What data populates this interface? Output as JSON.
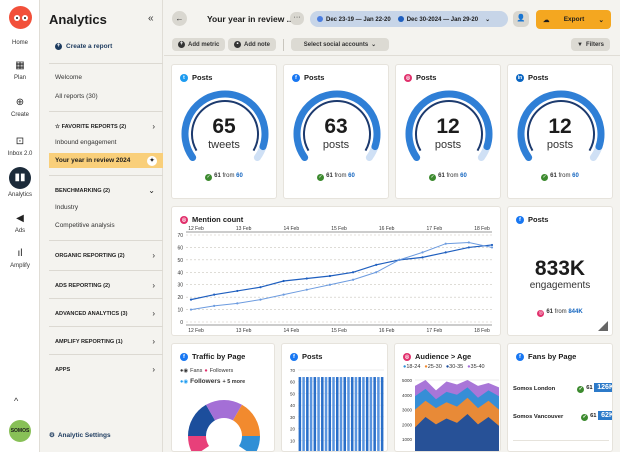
{
  "rail": {
    "items": [
      {
        "label": "Home"
      },
      {
        "label": "Plan"
      },
      {
        "label": "Create"
      },
      {
        "label": "Inbox 2.0"
      },
      {
        "label": "Analytics"
      },
      {
        "label": "Ads"
      },
      {
        "label": "Amplify"
      }
    ],
    "avatar": "SOMOS"
  },
  "panel": {
    "title": "Analytics",
    "create": "Create a report",
    "welcome": "Welcome",
    "all_reports": "All reports (30)",
    "favorite": "FAVORITE REPORTS (2)",
    "inbound": "Inbound engagement",
    "selected": "Your year in review 2024",
    "benchmarking": "BENCHMARKING (2)",
    "industry": "Industry",
    "competitive": "Competitive analysis",
    "organic": "ORGANIC REPORTING (2)",
    "ads": "ADS REPORTING (2)",
    "advanced": "ADVANCED ANALYTICS (3)",
    "amplify": "AMPLIFY REPORTING (1)",
    "apps": "APPS",
    "settings": "Analytic Settings"
  },
  "topbar": {
    "title": "Your year in review ..",
    "date1": "Dec 23-19 — Jan 22-20",
    "date2": "Dec 30-2024 — Jan 29-20",
    "export": "Export",
    "date1_color": "#4a7de0",
    "date2_color": "#1f5fbf"
  },
  "filters": {
    "add_metric": "Add metric",
    "add_note": "Add note",
    "social": "Select social accounts",
    "filters": "Filters"
  },
  "cards": {
    "twitter": {
      "title": "Posts",
      "value": "65",
      "unit": "tweets",
      "from_a": "61",
      "from_word": "from",
      "from_b": "60",
      "fill": 0.93
    },
    "facebook": {
      "title": "Posts",
      "value": "63",
      "unit": "posts",
      "from_a": "61",
      "from_word": "from",
      "from_b": "60",
      "fill": 0.93
    },
    "instagram": {
      "title": "Posts",
      "value": "12",
      "unit": "posts",
      "from_a": "61",
      "from_word": "from",
      "from_b": "60",
      "fill": 0.93
    },
    "linkedin": {
      "title": "Posts",
      "value": "12",
      "unit": "posts",
      "from_a": "61",
      "from_word": "from",
      "from_b": "60",
      "fill": 0.93
    },
    "mention": {
      "title": "Mention count"
    },
    "engagements": {
      "title": "Posts",
      "value": "833K",
      "unit": "engagements",
      "from_a": "61",
      "from_word": "from",
      "from_b": "844K"
    },
    "traffic": {
      "title": "Traffic by Page",
      "l1a": "Fans",
      "l1b": "Followers",
      "l2": "Followers",
      "l2b": "+ 5 more"
    },
    "posts_bar": {
      "title": "Posts"
    },
    "audience": {
      "title": "Audience > Age",
      "legend": [
        "18-24",
        "25-30",
        "30-35",
        "35-40"
      ]
    },
    "fans": {
      "title": "Fans by Page",
      "rows": [
        {
          "name": "Somos London",
          "badge": "61",
          "value": "126K"
        },
        {
          "name": "Somos Vancouver",
          "badge": "61",
          "value": "62K"
        }
      ]
    }
  },
  "chart_data": [
    {
      "type": "line",
      "title": "Mention count",
      "x_top": [
        "12 Feb",
        "13 Feb",
        "14 Feb",
        "15 Feb",
        "16 Feb",
        "17 Feb",
        "18 Feb"
      ],
      "x_bottom": [
        "12 Feb",
        "13 Feb",
        "14 Feb",
        "15 Feb",
        "16 Feb",
        "17 Feb",
        "18 Feb"
      ],
      "yticks": [
        0,
        10,
        20,
        30,
        40,
        50,
        60,
        70
      ],
      "ylim": [
        0,
        70
      ],
      "series": [
        {
          "values": [
            18,
            22,
            25,
            28,
            33,
            35,
            37,
            40,
            46,
            50,
            52,
            56,
            60,
            62
          ]
        },
        {
          "values": [
            10,
            13,
            15,
            18,
            22,
            26,
            30,
            34,
            40,
            50,
            56,
            63,
            64,
            60
          ]
        }
      ]
    },
    {
      "type": "bar",
      "title": "Posts",
      "yticks": [
        0,
        10,
        20,
        30,
        40,
        50,
        60,
        70
      ],
      "ylim": [
        0,
        70
      ],
      "values": [
        64,
        64,
        64,
        64,
        64,
        64,
        64,
        64,
        64,
        64,
        64,
        64,
        64,
        64,
        64,
        64,
        64,
        64,
        64,
        64,
        64,
        64,
        64
      ]
    },
    {
      "type": "area",
      "title": "Audience > Age",
      "yticks": [
        1000,
        2000,
        3000,
        4000,
        5000
      ],
      "ylim": [
        0,
        5000
      ],
      "legend": [
        "18-24",
        "25-30",
        "30-35",
        "35-40"
      ]
    }
  ]
}
